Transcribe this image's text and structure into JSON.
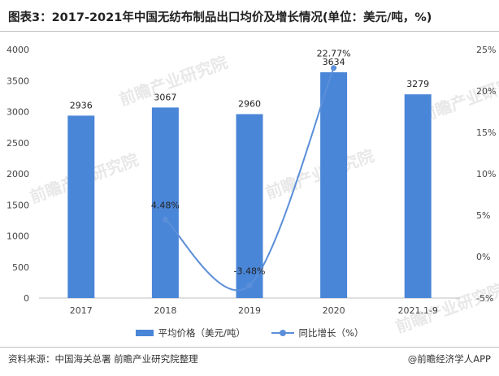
{
  "title": "图表3：2017-2021年中国无纺布制品出口均价及增长情况(单位：美元/吨，%)",
  "source": "资料来源：中国海关总署 前瞻产业研究院整理",
  "brand": "@前瞻经济学人APP",
  "watermark": "前瞻产业研究院",
  "colors": {
    "bar": "#4a86d8",
    "line": "#5b8fd9"
  },
  "legend": {
    "bar_label": "平均价格（美元/吨）",
    "line_label": "同比增长（%）"
  },
  "chart_data": {
    "type": "bar",
    "categories": [
      "2017",
      "2018",
      "2019",
      "2020",
      "2021.1-9"
    ],
    "series": [
      {
        "name": "平均价格（美元/吨）",
        "type": "bar",
        "axis": "left",
        "values": [
          2936,
          3067,
          2960,
          3634,
          3279
        ],
        "labels": [
          "2936",
          "3067",
          "2960",
          "3634",
          "3279"
        ]
      },
      {
        "name": "同比增长（%）",
        "type": "line",
        "axis": "right",
        "smooth": true,
        "values": [
          null,
          4.48,
          -3.48,
          22.77,
          null
        ],
        "labels": [
          "",
          "4.48%",
          "-3.48%",
          "22.77%",
          ""
        ]
      }
    ],
    "left_axis": {
      "min": 0,
      "max": 4000,
      "ticks": [
        "0",
        "500",
        "1000",
        "1500",
        "2000",
        "2500",
        "3000",
        "3500",
        "4000"
      ]
    },
    "right_axis": {
      "min": -5,
      "max": 25,
      "ticks": [
        "-5%",
        "0%",
        "5%",
        "10%",
        "15%",
        "20%",
        "25%"
      ]
    },
    "legend_position": "bottom",
    "grid": false
  }
}
